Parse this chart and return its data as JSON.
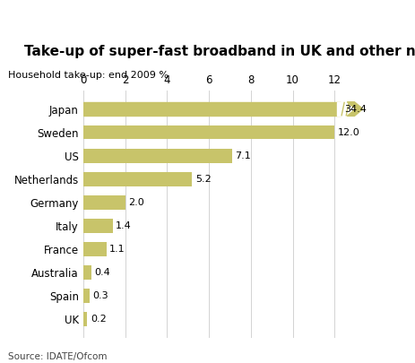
{
  "title": "Take-up of super-fast broadband in UK and other nations",
  "subtitle": "Household take-up: end 2009 %",
  "source": "Source: IDATE/Ofcom",
  "categories": [
    "Japan",
    "Sweden",
    "US",
    "Netherlands",
    "Germany",
    "Italy",
    "France",
    "Australia",
    "Spain",
    "UK"
  ],
  "values": [
    34.4,
    12.0,
    7.1,
    5.2,
    2.0,
    1.4,
    1.1,
    0.4,
    0.3,
    0.2
  ],
  "display_values": [
    12.3,
    12.0,
    7.1,
    5.2,
    2.0,
    1.4,
    1.1,
    0.4,
    0.3,
    0.2
  ],
  "bar_color": "#c8c46a",
  "background_color": "#ffffff",
  "xlim": [
    0,
    13.5
  ],
  "xticks": [
    0,
    2,
    4,
    6,
    8,
    10,
    12
  ],
  "title_fontsize": 11,
  "subtitle_fontsize": 8,
  "label_fontsize": 8,
  "source_fontsize": 7.5,
  "tick_fontsize": 8.5
}
